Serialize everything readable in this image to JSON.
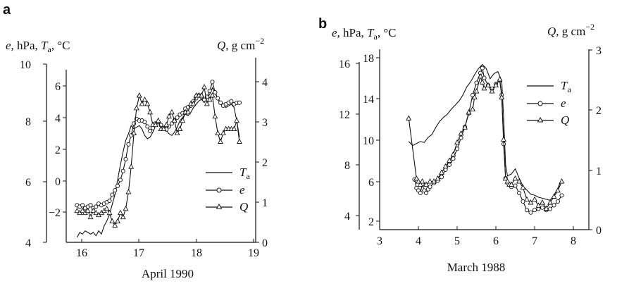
{
  "chart_data": [
    {
      "type": "line",
      "panel": "a",
      "xlabel": "April 1990",
      "left_axis_label": "e, hPa, T_a, °C",
      "right_axis_label": "Q, g cm^-2",
      "label_parts": {
        "left_e": "e,",
        "left_unit1": " hPa, ",
        "left_T": "T",
        "left_sub": "a",
        "left_unit2": ", °C",
        "right_Q": "Q",
        "right_unit": ", g cm",
        "right_exp": "−2"
      },
      "x_ticks": [
        "16",
        "17",
        "18",
        "19"
      ],
      "xlim": [
        15.8,
        19.3
      ],
      "axis_e": {
        "ticks": [
          "4",
          "6",
          "8",
          "10"
        ],
        "ylim": [
          4,
          10
        ]
      },
      "axis_T": {
        "ticks": [
          "−2",
          "0",
          "2",
          "4",
          "6"
        ],
        "ylim": [
          -3.5,
          7
        ]
      },
      "axis_Q": {
        "ticks": [
          "0",
          "1",
          "2",
          "3",
          "4"
        ],
        "ylim": [
          0,
          4.4
        ]
      },
      "legend": [
        "T_a",
        "e",
        "Q"
      ],
      "legend_parts": [
        {
          "main": "T",
          "sub": "a"
        },
        {
          "main": "e",
          "sub": ""
        },
        {
          "main": "Q",
          "sub": ""
        }
      ],
      "series": [
        {
          "name": "T_a",
          "axis": "T",
          "marker": "none",
          "x": [
            16.0,
            16.05,
            16.1,
            16.15,
            16.2,
            16.25,
            16.3,
            16.35,
            16.4,
            16.45,
            16.5,
            16.55,
            16.6,
            16.65,
            16.7,
            16.75,
            16.8,
            16.85,
            16.9,
            16.95,
            17.0,
            17.05,
            17.1,
            17.15,
            17.2,
            17.25,
            17.3,
            17.35,
            17.4,
            17.45,
            17.5,
            17.55,
            17.6,
            17.65,
            17.7,
            17.75,
            17.8,
            17.85,
            17.9,
            17.95,
            18.0,
            18.05,
            18.1,
            18.15,
            18.2,
            18.25,
            18.3,
            18.35,
            18.4,
            18.45,
            18.5,
            18.55,
            18.6,
            18.65,
            18.7,
            18.75,
            18.8,
            18.85,
            18.9,
            18.95,
            19.0
          ],
          "y": [
            -3.2,
            -2.9,
            -3.0,
            -2.8,
            -2.9,
            -3.0,
            -2.9,
            -3.1,
            -2.8,
            -3.0,
            -2.5,
            -2.2,
            -1.8,
            -1.2,
            -0.6,
            0.3,
            1.2,
            2.0,
            2.7,
            3.1,
            3.6,
            3.4,
            3.5,
            3.6,
            3.4,
            3.0,
            2.8,
            2.9,
            3.2,
            3.6,
            3.8,
            3.7,
            3.5,
            3.3,
            3.1,
            3.0,
            3.2,
            3.5,
            3.9,
            4.1,
            4.3,
            4.2,
            4.4,
            4.7,
            4.9,
            5.1,
            5.2,
            5.0,
            5.3,
            5.5,
            5.9,
            5.6,
            5.2,
            5.0,
            4.9,
            4.7,
            4.8,
            4.9,
            4.7,
            3.9,
            2.9
          ]
        },
        {
          "name": "e",
          "axis": "e",
          "marker": "circle",
          "x": [
            16.0,
            16.05,
            16.1,
            16.15,
            16.2,
            16.25,
            16.3,
            16.35,
            16.4,
            16.45,
            16.5,
            16.55,
            16.6,
            16.65,
            16.7,
            16.75,
            16.8,
            16.85,
            16.9,
            16.95,
            17.0,
            17.05,
            17.1,
            17.15,
            17.2,
            17.25,
            17.3,
            17.35,
            17.4,
            17.45,
            17.5,
            17.55,
            17.6,
            17.65,
            17.7,
            17.75,
            17.8,
            17.85,
            17.9,
            17.95,
            18.0,
            18.05,
            18.1,
            18.15,
            18.2,
            18.25,
            18.3,
            18.35,
            18.4,
            18.45,
            18.5,
            18.55,
            18.6,
            18.65,
            18.7,
            18.75,
            18.8,
            18.85,
            18.9,
            18.95,
            19.0
          ],
          "y": [
            5.25,
            5.2,
            5.25,
            5.15,
            5.2,
            5.25,
            5.15,
            5.2,
            5.3,
            5.25,
            5.3,
            5.35,
            5.4,
            5.6,
            5.75,
            5.9,
            6.1,
            6.4,
            6.8,
            7.3,
            7.6,
            8.0,
            8.15,
            8.1,
            8.1,
            8.05,
            7.9,
            7.75,
            7.85,
            8.0,
            8.05,
            7.95,
            7.85,
            7.8,
            7.9,
            8.0,
            8.1,
            8.2,
            8.3,
            8.35,
            8.5,
            8.55,
            8.6,
            8.75,
            8.85,
            8.95,
            8.9,
            8.8,
            8.9,
            9.1,
            9.4,
            9.05,
            8.85,
            8.7,
            8.6,
            8.65,
            8.7,
            8.75,
            8.65,
            8.7,
            8.7
          ]
        },
        {
          "name": "Q",
          "axis": "Q",
          "marker": "triangle",
          "x": [
            16.0,
            16.05,
            16.1,
            16.15,
            16.2,
            16.25,
            16.3,
            16.35,
            16.4,
            16.45,
            16.5,
            16.55,
            16.6,
            16.65,
            16.7,
            16.75,
            16.8,
            16.85,
            16.9,
            16.95,
            17.0,
            17.05,
            17.1,
            17.15,
            17.2,
            17.25,
            17.3,
            17.35,
            17.4,
            17.45,
            17.5,
            17.55,
            17.6,
            17.65,
            17.7,
            17.75,
            17.8,
            17.85,
            17.9,
            17.95,
            18.0,
            18.05,
            18.1,
            18.15,
            18.2,
            18.25,
            18.3,
            18.35,
            18.4,
            18.45,
            18.5,
            18.55,
            18.6,
            18.65,
            18.7,
            18.75,
            18.8,
            18.85,
            18.9,
            18.95,
            19.0
          ],
          "y": [
            0.75,
            0.7,
            0.75,
            0.7,
            0.75,
            0.6,
            0.75,
            0.7,
            0.65,
            0.7,
            0.75,
            0.8,
            0.7,
            0.5,
            0.4,
            0.5,
            0.7,
            0.6,
            0.8,
            1.2,
            1.8,
            2.6,
            3.2,
            3.5,
            3.3,
            3.4,
            3.3,
            3.1,
            2.8,
            2.8,
            2.9,
            2.7,
            2.7,
            2.8,
            3.0,
            3.1,
            2.9,
            2.6,
            2.7,
            2.9,
            3.1,
            3.1,
            3.3,
            3.3,
            3.5,
            3.5,
            3.5,
            3.7,
            3.3,
            3.4,
            3.5,
            3.0,
            2.6,
            2.4,
            2.6,
            2.7,
            2.7,
            2.7,
            2.7,
            2.9,
            2.4
          ]
        }
      ]
    },
    {
      "type": "line",
      "panel": "b",
      "xlabel": "March 1988",
      "left_axis_label": "e, hPa, T_a, °C",
      "right_axis_label": "Q, g cm^-2",
      "label_parts": {
        "left_e": "e,",
        "left_unit1": " hPa, ",
        "left_T": "T",
        "left_sub": "a",
        "left_unit2": ", °C",
        "right_Q": "Q",
        "right_unit": ", g cm",
        "right_exp": "−2"
      },
      "x_ticks": [
        "3",
        "4",
        "5",
        "6",
        "7",
        "8"
      ],
      "xlim": [
        3,
        8.4
      ],
      "axis_e": {
        "ticks": [
          "4",
          "8",
          "12",
          "16"
        ],
        "ylim": [
          3.0,
          16.7
        ]
      },
      "axis_T": {
        "ticks": [
          "2",
          "6",
          "10",
          "14",
          "18"
        ],
        "ylim": [
          0.9,
          18.7
        ]
      },
      "axis_Q": {
        "ticks": [
          "0",
          "1",
          "2",
          "3"
        ],
        "ylim": [
          0,
          3.0
        ]
      },
      "legend": [
        "T_a",
        "e",
        "Q"
      ],
      "legend_parts": [
        {
          "main": "T",
          "sub": "a"
        },
        {
          "main": "e",
          "sub": ""
        },
        {
          "main": "Q",
          "sub": ""
        }
      ],
      "series": [
        {
          "name": "T_a",
          "axis": "T",
          "marker": "none",
          "x": [
            3.75,
            3.85,
            3.95,
            4.05,
            4.15,
            4.25,
            4.35,
            4.45,
            4.55,
            4.65,
            4.75,
            4.85,
            4.95,
            5.05,
            5.15,
            5.25,
            5.35,
            5.45,
            5.55,
            5.65,
            5.75,
            5.85,
            5.95,
            6.05,
            6.15,
            6.2,
            6.25,
            6.3,
            6.4,
            6.5,
            6.6,
            6.7,
            6.8,
            6.9,
            7.0,
            7.1,
            7.2,
            7.3,
            7.4,
            7.5,
            7.6,
            7.7
          ],
          "y": [
            9.6,
            9.2,
            9.4,
            9.6,
            9.5,
            10.0,
            10.3,
            11.0,
            11.6,
            12.0,
            12.3,
            12.8,
            13.2,
            13.6,
            14.2,
            15.0,
            15.5,
            16.2,
            16.8,
            17.2,
            16.8,
            15.8,
            16.3,
            16.5,
            15.6,
            12.0,
            7.3,
            6.2,
            6.4,
            6.9,
            6.0,
            5.2,
            4.8,
            4.4,
            4.3,
            4.1,
            4.0,
            3.9,
            3.8,
            4.3,
            5.0,
            5.9
          ]
        },
        {
          "name": "e",
          "axis": "e",
          "marker": "circle",
          "x": [
            3.9,
            3.95,
            4.0,
            4.05,
            4.1,
            4.15,
            4.2,
            4.25,
            4.3,
            4.4,
            4.5,
            4.6,
            4.7,
            4.8,
            4.9,
            5.0,
            5.1,
            5.2,
            5.3,
            5.4,
            5.5,
            5.6,
            5.65,
            5.7,
            5.8,
            5.9,
            6.0,
            6.1,
            6.15,
            6.2,
            6.25,
            6.3,
            6.4,
            6.5,
            6.6,
            6.7,
            6.8,
            6.9,
            7.0,
            7.1,
            7.2,
            7.3,
            7.4,
            7.5,
            7.6,
            7.7
          ],
          "y": [
            7.1,
            6.4,
            6.2,
            6.0,
            6.7,
            6.2,
            6.0,
            6.3,
            6.5,
            6.8,
            7.0,
            7.3,
            7.9,
            8.3,
            8.8,
            9.6,
            10.5,
            11.4,
            12.5,
            14.0,
            15.0,
            15.8,
            16.2,
            15.4,
            14.8,
            14.5,
            14.9,
            15.2,
            14.0,
            10.0,
            7.2,
            6.8,
            6.5,
            6.6,
            6.0,
            5.3,
            4.6,
            4.4,
            4.6,
            4.7,
            4.8,
            4.6,
            4.7,
            5.0,
            5.3,
            5.8
          ]
        },
        {
          "name": "Q",
          "axis": "Q",
          "marker": "triangle",
          "x": [
            3.75,
            3.95,
            4.0,
            4.05,
            4.1,
            4.2,
            4.3,
            4.4,
            4.5,
            4.6,
            4.7,
            4.8,
            4.9,
            5.0,
            5.1,
            5.2,
            5.3,
            5.4,
            5.45,
            5.5,
            5.6,
            5.65,
            5.7,
            5.8,
            5.9,
            6.0,
            6.1,
            6.15,
            6.2,
            6.25,
            6.3,
            6.35,
            6.4,
            6.5,
            6.6,
            6.7,
            6.8,
            6.9,
            7.0,
            7.1,
            7.2,
            7.3,
            7.4,
            7.5,
            7.6,
            7.7
          ],
          "y": [
            1.85,
            0.85,
            0.8,
            0.75,
            0.8,
            0.75,
            0.8,
            0.8,
            0.85,
            0.95,
            1.05,
            1.15,
            1.25,
            1.45,
            1.6,
            1.7,
            1.95,
            2.0,
            2.2,
            2.3,
            2.55,
            2.45,
            2.35,
            2.4,
            2.3,
            2.4,
            2.5,
            2.2,
            1.5,
            0.85,
            0.8,
            0.75,
            0.75,
            0.85,
            0.8,
            0.7,
            0.5,
            0.45,
            0.5,
            0.4,
            0.45,
            0.35,
            0.45,
            0.55,
            0.65,
            0.8
          ]
        }
      ]
    }
  ]
}
